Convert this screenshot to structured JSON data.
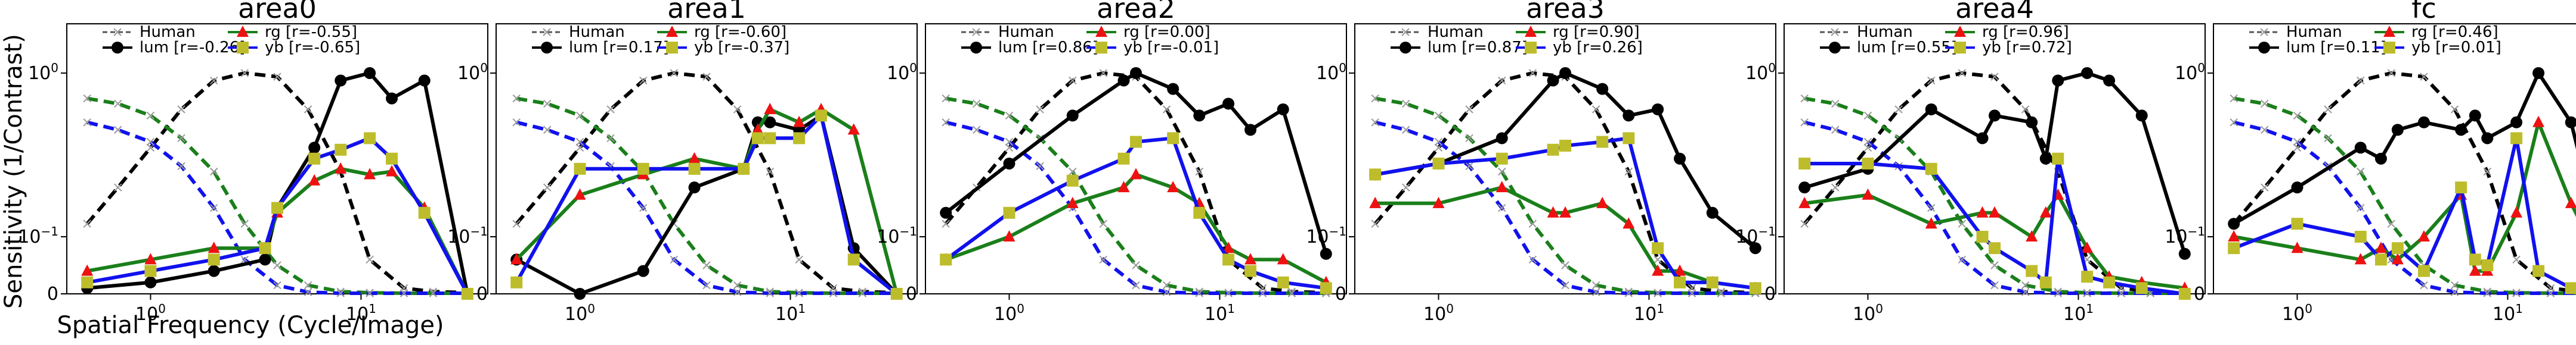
{
  "figure": {
    "ylabel": "Sensitivity (1/Contrast)",
    "xlabel": "Spatial Frequency (Cycle/Image)"
  },
  "legend_labels": {
    "human": "Human",
    "lum": "lum",
    "rg": "rg",
    "yb": "yb"
  },
  "colors": {
    "lum": "#000000",
    "rg": "#1a7f1a",
    "yb": "#1111ee",
    "rg_marker": "#ee1111",
    "yb_marker": "#bdbd2b",
    "human_marker": "#999999"
  },
  "chart_data": [
    {
      "type": "line",
      "title": "area0",
      "xscale": "log",
      "yscale": "symlog",
      "xlim": [
        0.4,
        40
      ],
      "ylim": [
        0,
        2
      ],
      "xticks": [
        "10^0",
        "10^1"
      ],
      "yticks": [
        "0",
        "10^-1",
        "10^0"
      ],
      "human": {
        "x": [
          0.5,
          0.7,
          1,
          1.4,
          2,
          2.8,
          4,
          5.6,
          8,
          11,
          16,
          22,
          32
        ],
        "lum": [
          0.12,
          0.2,
          0.35,
          0.6,
          0.9,
          1.0,
          0.95,
          0.6,
          0.25,
          0.06,
          0.01,
          0.004,
          0.002
        ],
        "rg": [
          0.7,
          0.65,
          0.55,
          0.4,
          0.25,
          0.12,
          0.05,
          0.015,
          0.004,
          0.002,
          0.001,
          0.001,
          0.001
        ],
        "yb": [
          0.5,
          0.45,
          0.38,
          0.27,
          0.15,
          0.06,
          0.015,
          0.003,
          0.001,
          0.001,
          0.001,
          0.001,
          0.001
        ]
      },
      "series": [
        {
          "name": "lum",
          "r": "[r=-0.26]",
          "x": [
            0.5,
            1,
            2,
            3.5,
            4,
            6,
            8,
            11,
            14,
            20,
            32
          ],
          "y": [
            0.01,
            0.02,
            0.04,
            0.06,
            0.15,
            0.35,
            0.9,
            1.0,
            0.7,
            0.9,
            0.0
          ]
        },
        {
          "name": "rg",
          "r": "[r=-0.55]",
          "x": [
            0.5,
            1,
            2,
            3.5,
            4,
            6,
            8,
            11,
            14,
            20,
            32
          ],
          "y": [
            0.04,
            0.06,
            0.08,
            0.08,
            0.14,
            0.22,
            0.26,
            0.24,
            0.25,
            0.15,
            0.0
          ]
        },
        {
          "name": "yb",
          "r": "[r=-0.65]",
          "x": [
            0.5,
            1,
            2,
            3.5,
            4,
            6,
            8,
            11,
            14,
            20,
            32
          ],
          "y": [
            0.02,
            0.04,
            0.06,
            0.08,
            0.15,
            0.3,
            0.34,
            0.4,
            0.3,
            0.14,
            0.0
          ]
        }
      ]
    },
    {
      "type": "line",
      "title": "area1",
      "xscale": "log",
      "yscale": "symlog",
      "xlim": [
        0.4,
        40
      ],
      "ylim": [
        0,
        2
      ],
      "xticks": [
        "10^0",
        "10^1"
      ],
      "yticks": [
        "0",
        "10^-1",
        "10^0"
      ],
      "human": {
        "x": [
          0.5,
          0.7,
          1,
          1.4,
          2,
          2.8,
          4,
          5.6,
          8,
          11,
          16,
          22,
          32
        ],
        "lum": [
          0.12,
          0.2,
          0.35,
          0.6,
          0.9,
          1.0,
          0.95,
          0.6,
          0.25,
          0.06,
          0.01,
          0.004,
          0.002
        ],
        "rg": [
          0.7,
          0.65,
          0.55,
          0.4,
          0.25,
          0.12,
          0.05,
          0.015,
          0.004,
          0.002,
          0.001,
          0.001,
          0.001
        ],
        "yb": [
          0.5,
          0.45,
          0.38,
          0.27,
          0.15,
          0.06,
          0.015,
          0.003,
          0.001,
          0.001,
          0.001,
          0.001,
          0.001
        ]
      },
      "series": [
        {
          "name": "lum",
          "r": "[r=0.17]",
          "x": [
            0.5,
            1,
            2,
            3.5,
            6,
            7,
            8,
            11,
            14,
            20,
            32
          ],
          "y": [
            0.06,
            0.0,
            0.04,
            0.2,
            0.26,
            0.5,
            0.5,
            0.45,
            0.55,
            0.08,
            0.0
          ]
        },
        {
          "name": "rg",
          "r": "[r=-0.60]",
          "x": [
            0.5,
            1,
            2,
            3.5,
            6,
            7,
            8,
            11,
            14,
            20,
            32
          ],
          "y": [
            0.06,
            0.18,
            0.24,
            0.3,
            0.26,
            0.45,
            0.6,
            0.5,
            0.6,
            0.45,
            0.0
          ]
        },
        {
          "name": "yb",
          "r": "[r=-0.37]",
          "x": [
            0.5,
            1,
            2,
            3.5,
            6,
            7,
            8,
            11,
            14,
            20,
            32
          ],
          "y": [
            0.02,
            0.26,
            0.26,
            0.26,
            0.26,
            0.4,
            0.4,
            0.4,
            0.55,
            0.06,
            0.0
          ]
        }
      ]
    },
    {
      "type": "line",
      "title": "area2",
      "xscale": "log",
      "yscale": "symlog",
      "xlim": [
        0.4,
        40
      ],
      "ylim": [
        0,
        2
      ],
      "xticks": [
        "10^0",
        "10^1"
      ],
      "yticks": [
        "0",
        "10^-1",
        "10^0"
      ],
      "human": {
        "x": [
          0.5,
          0.7,
          1,
          1.4,
          2,
          2.8,
          4,
          5.6,
          8,
          11,
          16,
          22,
          32
        ],
        "lum": [
          0.12,
          0.2,
          0.35,
          0.6,
          0.9,
          1.0,
          0.95,
          0.6,
          0.25,
          0.06,
          0.01,
          0.004,
          0.002
        ],
        "rg": [
          0.7,
          0.65,
          0.55,
          0.4,
          0.25,
          0.12,
          0.05,
          0.015,
          0.004,
          0.002,
          0.001,
          0.001,
          0.001
        ],
        "yb": [
          0.5,
          0.45,
          0.38,
          0.27,
          0.15,
          0.06,
          0.015,
          0.003,
          0.001,
          0.001,
          0.001,
          0.001,
          0.001
        ]
      },
      "series": [
        {
          "name": "lum",
          "r": "[r=0.86]",
          "x": [
            0.5,
            1,
            2,
            3.5,
            4,
            6,
            8,
            11,
            14,
            20,
            32
          ],
          "y": [
            0.14,
            0.28,
            0.55,
            0.9,
            1.0,
            0.8,
            0.55,
            0.65,
            0.45,
            0.6,
            0.07
          ]
        },
        {
          "name": "rg",
          "r": "[r=0.00]",
          "x": [
            0.5,
            1,
            2,
            3.5,
            4,
            6,
            8,
            11,
            14,
            20,
            32
          ],
          "y": [
            0.06,
            0.1,
            0.16,
            0.2,
            0.24,
            0.2,
            0.16,
            0.08,
            0.06,
            0.06,
            0.02
          ]
        },
        {
          "name": "yb",
          "r": "[r=-0.01]",
          "x": [
            0.5,
            1,
            2,
            3.5,
            4,
            6,
            8,
            11,
            14,
            20,
            32
          ],
          "y": [
            0.06,
            0.14,
            0.22,
            0.3,
            0.38,
            0.4,
            0.14,
            0.06,
            0.04,
            0.02,
            0.01
          ]
        }
      ]
    },
    {
      "type": "line",
      "title": "area3",
      "xscale": "log",
      "yscale": "symlog",
      "xlim": [
        0.4,
        40
      ],
      "ylim": [
        0,
        2
      ],
      "xticks": [
        "10^0",
        "10^1"
      ],
      "yticks": [
        "0",
        "10^-1",
        "10^0"
      ],
      "human": {
        "x": [
          0.5,
          0.7,
          1,
          1.4,
          2,
          2.8,
          4,
          5.6,
          8,
          11,
          16,
          22,
          32
        ],
        "lum": [
          0.12,
          0.2,
          0.35,
          0.6,
          0.9,
          1.0,
          0.95,
          0.6,
          0.25,
          0.06,
          0.01,
          0.004,
          0.002
        ],
        "rg": [
          0.7,
          0.65,
          0.55,
          0.4,
          0.25,
          0.12,
          0.05,
          0.015,
          0.004,
          0.002,
          0.001,
          0.001,
          0.001
        ],
        "yb": [
          0.5,
          0.45,
          0.38,
          0.27,
          0.15,
          0.06,
          0.015,
          0.003,
          0.001,
          0.001,
          0.001,
          0.001,
          0.001
        ]
      },
      "series": [
        {
          "name": "lum",
          "r": "[r=0.87]",
          "x": [
            0.5,
            1,
            2,
            3.5,
            4,
            6,
            8,
            11,
            14,
            20,
            32
          ],
          "y": [
            0.24,
            0.28,
            0.4,
            0.9,
            1.0,
            0.8,
            0.55,
            0.6,
            0.3,
            0.14,
            0.08
          ]
        },
        {
          "name": "rg",
          "r": "[r=0.90]",
          "x": [
            0.5,
            1,
            2,
            3.5,
            4,
            6,
            8,
            11,
            14,
            20,
            32
          ],
          "y": [
            0.16,
            0.16,
            0.2,
            0.14,
            0.14,
            0.16,
            0.12,
            0.04,
            0.04,
            0.02,
            0.01
          ]
        },
        {
          "name": "yb",
          "r": "[r=0.26]",
          "x": [
            0.5,
            1,
            2,
            3.5,
            4,
            6,
            8,
            11,
            14,
            20,
            32
          ],
          "y": [
            0.24,
            0.28,
            0.3,
            0.34,
            0.36,
            0.38,
            0.4,
            0.08,
            0.02,
            0.02,
            0.01
          ]
        }
      ]
    },
    {
      "type": "line",
      "title": "area4",
      "xscale": "log",
      "yscale": "symlog",
      "xlim": [
        0.4,
        40
      ],
      "ylim": [
        0,
        2
      ],
      "xticks": [
        "10^0",
        "10^1"
      ],
      "yticks": [
        "0",
        "10^-1",
        "10^0"
      ],
      "human": {
        "x": [
          0.5,
          0.7,
          1,
          1.4,
          2,
          2.8,
          4,
          5.6,
          8,
          11,
          16,
          22,
          32
        ],
        "lum": [
          0.12,
          0.2,
          0.35,
          0.6,
          0.9,
          1.0,
          0.95,
          0.6,
          0.25,
          0.06,
          0.01,
          0.004,
          0.002
        ],
        "rg": [
          0.7,
          0.65,
          0.55,
          0.4,
          0.25,
          0.12,
          0.05,
          0.015,
          0.004,
          0.002,
          0.001,
          0.001,
          0.001
        ],
        "yb": [
          0.5,
          0.45,
          0.38,
          0.27,
          0.15,
          0.06,
          0.015,
          0.003,
          0.001,
          0.001,
          0.001,
          0.001,
          0.001
        ]
      },
      "series": [
        {
          "name": "lum",
          "r": "[r=0.55]",
          "x": [
            0.5,
            1,
            2,
            3.5,
            4,
            6,
            7,
            8,
            11,
            14,
            20,
            32
          ],
          "y": [
            0.2,
            0.26,
            0.6,
            0.4,
            0.55,
            0.5,
            0.3,
            0.9,
            1.0,
            0.9,
            0.55,
            0.07
          ]
        },
        {
          "name": "rg",
          "r": "[r=0.96]",
          "x": [
            0.5,
            1,
            2,
            3.5,
            4,
            6,
            7,
            8,
            11,
            14,
            20,
            32
          ],
          "y": [
            0.16,
            0.18,
            0.12,
            0.14,
            0.14,
            0.1,
            0.14,
            0.18,
            0.08,
            0.03,
            0.02,
            0.01
          ]
        },
        {
          "name": "yb",
          "r": "[r=0.72]",
          "x": [
            0.5,
            1,
            2,
            3.5,
            4,
            6,
            7,
            8,
            11,
            14,
            20,
            32
          ],
          "y": [
            0.28,
            0.28,
            0.26,
            0.1,
            0.08,
            0.04,
            0.02,
            0.3,
            0.03,
            0.02,
            0.01,
            0.0
          ]
        }
      ]
    },
    {
      "type": "line",
      "title": "fc",
      "xscale": "log",
      "yscale": "symlog",
      "xlim": [
        0.4,
        40
      ],
      "ylim": [
        0,
        2
      ],
      "xticks": [
        "10^0",
        "10^1"
      ],
      "yticks": [
        "0",
        "10^-1",
        "10^0"
      ],
      "human": {
        "x": [
          0.5,
          0.7,
          1,
          1.4,
          2,
          2.8,
          4,
          5.6,
          8,
          11,
          16,
          22,
          32
        ],
        "lum": [
          0.12,
          0.2,
          0.35,
          0.6,
          0.9,
          1.0,
          0.95,
          0.6,
          0.25,
          0.06,
          0.01,
          0.004,
          0.002
        ],
        "rg": [
          0.7,
          0.65,
          0.55,
          0.4,
          0.25,
          0.12,
          0.05,
          0.015,
          0.004,
          0.002,
          0.001,
          0.001,
          0.001
        ],
        "yb": [
          0.5,
          0.45,
          0.38,
          0.27,
          0.15,
          0.06,
          0.015,
          0.003,
          0.001,
          0.001,
          0.001,
          0.001,
          0.001
        ]
      },
      "series": [
        {
          "name": "lum",
          "r": "[r=0.11]",
          "x": [
            0.5,
            1,
            2,
            2.5,
            3,
            4,
            6,
            7,
            8,
            11,
            14,
            20,
            32
          ],
          "y": [
            0.12,
            0.2,
            0.35,
            0.3,
            0.45,
            0.5,
            0.45,
            0.55,
            0.4,
            0.5,
            1.0,
            0.5,
            0.0
          ]
        },
        {
          "name": "rg",
          "r": "[r=0.46]",
          "x": [
            0.5,
            1,
            2,
            2.5,
            3,
            4,
            6,
            7,
            8,
            11,
            14,
            20,
            32
          ],
          "y": [
            0.1,
            0.08,
            0.06,
            0.08,
            0.06,
            0.1,
            0.18,
            0.04,
            0.04,
            0.14,
            0.5,
            0.16,
            0.01
          ]
        },
        {
          "name": "yb",
          "r": "[r=0.01]",
          "x": [
            0.5,
            1,
            2,
            2.5,
            3,
            4,
            6,
            7,
            8,
            11,
            14,
            20,
            32
          ],
          "y": [
            0.08,
            0.12,
            0.1,
            0.06,
            0.08,
            0.04,
            0.2,
            0.06,
            0.05,
            0.4,
            0.04,
            0.01,
            0.0
          ]
        }
      ]
    }
  ]
}
